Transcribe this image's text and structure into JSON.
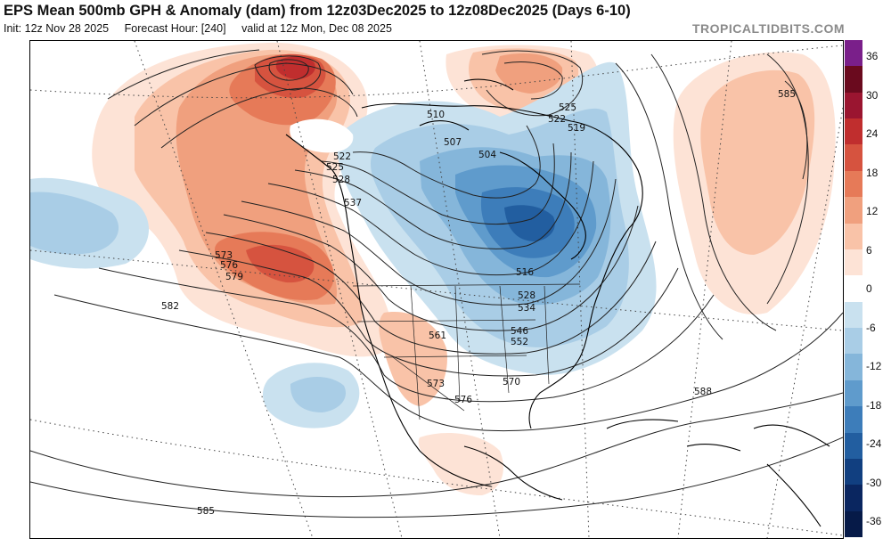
{
  "header": {
    "title": "EPS Mean 500mb GPH & Anomaly (dam) from 12z03Dec2025 to 12z08Dec2025 (Days 6-10)",
    "init": "Init: 12z Nov 28 2025",
    "forecast_hour": "Forecast Hour: [240]",
    "valid": "valid at 12z Mon, Dec 08 2025",
    "brand": "TROPICALTIDBITS.COM"
  },
  "colors": {
    "warm": [
      "#fde3d6",
      "#f9c3a8",
      "#f0a07e",
      "#e67a58",
      "#d6533f",
      "#c02e2e",
      "#9a1530",
      "#6a0a1e",
      "#7a1f8a"
    ],
    "cool": [
      "#c9e1ef",
      "#a9cde6",
      "#85b6da",
      "#5f9bcc",
      "#3d7dba",
      "#225ea0",
      "#113f80",
      "#0a2660",
      "#061a48"
    ]
  },
  "colorbar": {
    "ticks": [
      "36",
      "30",
      "24",
      "18",
      "12",
      "6",
      "0",
      "-6",
      "-12",
      "-18",
      "-24",
      "-30",
      "-36"
    ]
  },
  "contour_labels": [
    {
      "id": "l522a",
      "text": "522"
    },
    {
      "id": "l525a",
      "text": "525"
    },
    {
      "id": "l528a",
      "text": "528"
    },
    {
      "id": "l537",
      "text": "537"
    },
    {
      "id": "l504",
      "text": "504"
    },
    {
      "id": "l507",
      "text": "507"
    },
    {
      "id": "l510",
      "text": "510"
    },
    {
      "id": "l516",
      "text": "516"
    },
    {
      "id": "l525b",
      "text": "525"
    },
    {
      "id": "l522b",
      "text": "522"
    },
    {
      "id": "l519",
      "text": "519"
    },
    {
      "id": "l528b",
      "text": "528"
    },
    {
      "id": "l534",
      "text": "534"
    },
    {
      "id": "l546",
      "text": "546"
    },
    {
      "id": "l552",
      "text": "552"
    },
    {
      "id": "l561",
      "text": "561"
    },
    {
      "id": "l570",
      "text": "570"
    },
    {
      "id": "l573a",
      "text": "573"
    },
    {
      "id": "l576a",
      "text": "576"
    },
    {
      "id": "l579",
      "text": "579"
    },
    {
      "id": "l582",
      "text": "582"
    },
    {
      "id": "l573b",
      "text": "573"
    },
    {
      "id": "l576b",
      "text": "576"
    },
    {
      "id": "l585a",
      "text": "585"
    },
    {
      "id": "l585b",
      "text": "585"
    },
    {
      "id": "l588",
      "text": "588"
    }
  ]
}
